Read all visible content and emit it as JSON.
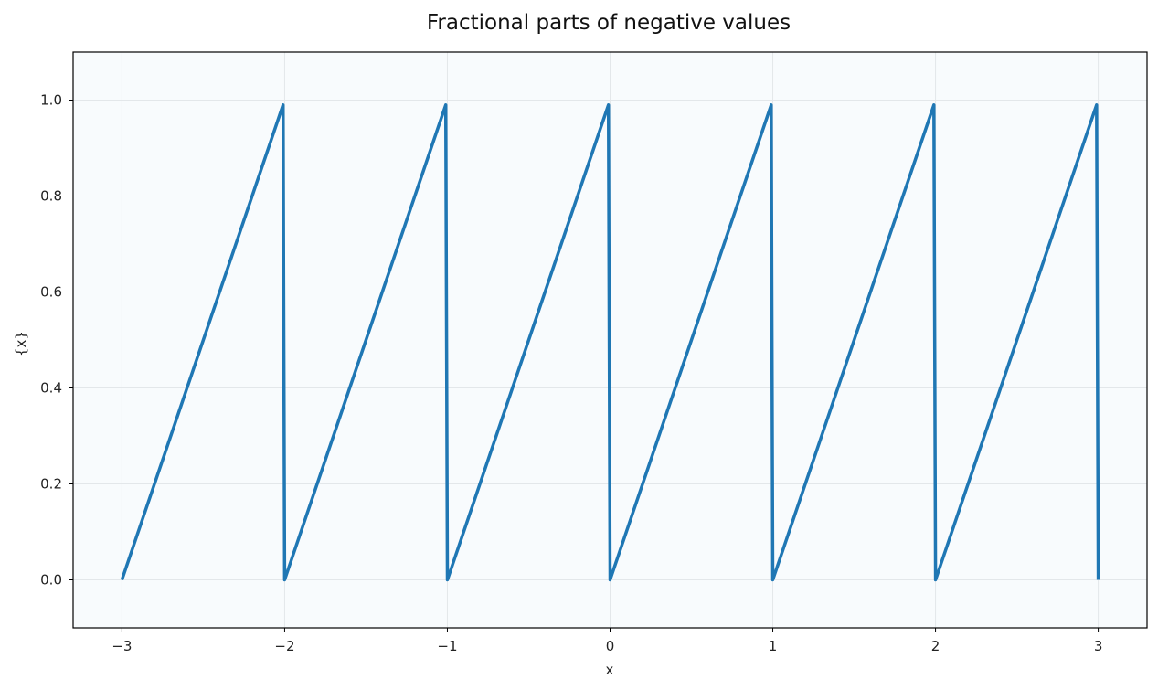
{
  "chart_data": {
    "type": "line",
    "title": "Fractional parts of negative values",
    "xlabel": "x",
    "ylabel": "{x}",
    "xlim": [
      -3.3,
      3.3
    ],
    "ylim": [
      -0.1,
      1.1
    ],
    "xticks": [
      -3,
      -2,
      -1,
      0,
      1,
      2,
      3
    ],
    "xtick_labels": [
      "−3",
      "−2",
      "−1",
      "0",
      "1",
      "2",
      "3"
    ],
    "yticks": [
      0.0,
      0.2,
      0.4,
      0.6,
      0.8,
      1.0
    ],
    "ytick_labels": [
      "0.0",
      "0.2",
      "0.4",
      "0.6",
      "0.8",
      "1.0"
    ],
    "grid": true,
    "colors": {
      "line": "#1f77b4",
      "plot_background": "#f8fbfd",
      "grid": "#e3e7ea"
    },
    "series": [
      {
        "x": [
          -3.0,
          -2.01,
          -2.0,
          -1.01,
          -1.0,
          -0.01,
          0.0,
          0.99,
          1.0,
          1.99,
          2.0,
          2.99,
          3.0
        ],
        "y": [
          0.0,
          0.99,
          0.0,
          0.99,
          0.0,
          0.99,
          0.0,
          0.99,
          0.0,
          0.99,
          0.0,
          0.99,
          0.0
        ]
      }
    ]
  }
}
